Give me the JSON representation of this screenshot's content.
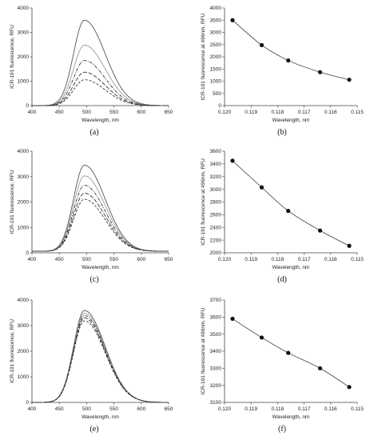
{
  "chart_data": [
    {
      "id": "a",
      "type": "line",
      "panel_label": "(a)",
      "xlabel": "Wavelength, nm",
      "ylabel": "ICR-191 fluorescence, RFU",
      "xlim": [
        400,
        650
      ],
      "ylim": [
        0,
        4000
      ],
      "xticks": [
        "400",
        "450",
        "500",
        "550",
        "600",
        "650"
      ],
      "yticks": [
        "0",
        "1000",
        "2000",
        "3000",
        "4000"
      ],
      "peak_x": 496,
      "series": [
        {
          "peak": 3500,
          "style": "solid-dark"
        },
        {
          "peak": 2480,
          "style": "solid-light"
        },
        {
          "peak": 1850,
          "style": "dashdot"
        },
        {
          "peak": 1370,
          "style": "longdash"
        },
        {
          "peak": 1060,
          "style": "dash"
        }
      ]
    },
    {
      "id": "b",
      "type": "scatter",
      "panel_label": "(b)",
      "xlabel": "Wavelength, nm",
      "ylabel": "ICR-191 fluorescence at 496nm, RFU",
      "xlim": [
        0.12,
        0.115
      ],
      "ylim": [
        0,
        4000
      ],
      "x_reversed": true,
      "xticks": [
        "0.120",
        "0.119",
        "0.118",
        "0.117",
        "0.116",
        "0.115"
      ],
      "yticks": [
        "0",
        "500",
        "1000",
        "1500",
        "2000",
        "2500",
        "3000",
        "3500",
        "4000"
      ],
      "x": [
        0.1197,
        0.1186,
        0.1176,
        0.1164,
        0.1153
      ],
      "y": [
        3500,
        2480,
        1850,
        1370,
        1060
      ]
    },
    {
      "id": "c",
      "type": "line",
      "panel_label": "(c)",
      "xlabel": "Wavelength, nm",
      "ylabel": "ICR-191 fluorescence, RFU",
      "xlim": [
        400,
        650
      ],
      "ylim": [
        0,
        4000
      ],
      "xticks": [
        "400",
        "450",
        "500",
        "550",
        "600",
        "650"
      ],
      "yticks": [
        "0",
        "1000",
        "2000",
        "3000",
        "4000"
      ],
      "peak_x": 496,
      "baseline": 60,
      "series": [
        {
          "peak": 3450,
          "style": "solid-dark"
        },
        {
          "peak": 3030,
          "style": "solid-light"
        },
        {
          "peak": 2660,
          "style": "dashdot"
        },
        {
          "peak": 2350,
          "style": "longdash"
        },
        {
          "peak": 2110,
          "style": "dash"
        }
      ]
    },
    {
      "id": "d",
      "type": "scatter",
      "panel_label": "(d)",
      "xlabel": "Wavelength, nm",
      "ylabel": "ICR-191 fluorescence at 496nm, RFU",
      "xlim": [
        0.12,
        0.115
      ],
      "ylim": [
        2000,
        3600
      ],
      "x_reversed": true,
      "xticks": [
        "0.120",
        "0.119",
        "0.118",
        "0.117",
        "0.116",
        "0.115"
      ],
      "yticks": [
        "2000",
        "2200",
        "2400",
        "2600",
        "2800",
        "3000",
        "3200",
        "3400",
        "3600"
      ],
      "x": [
        0.1197,
        0.1186,
        0.1176,
        0.1164,
        0.1153
      ],
      "y": [
        3450,
        3030,
        2660,
        2350,
        2110
      ]
    },
    {
      "id": "e",
      "type": "line",
      "panel_label": "(e)",
      "xlabel": "Wavelength, nm",
      "ylabel": "ICR-191 fluorescence, RFU",
      "xlim": [
        400,
        650
      ],
      "ylim": [
        0,
        4000
      ],
      "xticks": [
        "400",
        "450",
        "500",
        "550",
        "600",
        "650"
      ],
      "yticks": [
        "0",
        "1000",
        "2000",
        "3000",
        "4000"
      ],
      "peak_x": 496,
      "series": [
        {
          "peak": 3590,
          "style": "solid-dark"
        },
        {
          "peak": 3480,
          "style": "solid-light"
        },
        {
          "peak": 3390,
          "style": "dashdot"
        },
        {
          "peak": 3300,
          "style": "longdash"
        },
        {
          "peak": 3190,
          "style": "dash"
        }
      ]
    },
    {
      "id": "f",
      "type": "scatter",
      "panel_label": "(f)",
      "xlabel": "Wavelength, nm",
      "ylabel": "ICR-191 fluorescence at 496nm, RFU",
      "xlim": [
        0.12,
        0.115
      ],
      "ylim": [
        3100,
        3700
      ],
      "x_reversed": true,
      "xticks": [
        "0.120",
        "0.119",
        "0.118",
        "0.117",
        "0.116",
        "0.115"
      ],
      "yticks": [
        "3100",
        "3200",
        "3300",
        "3400",
        "3500",
        "3600",
        "3700"
      ],
      "x": [
        0.1197,
        0.1186,
        0.1176,
        0.1164,
        0.1153
      ],
      "y": [
        3590,
        3480,
        3390,
        3300,
        3190
      ]
    }
  ]
}
